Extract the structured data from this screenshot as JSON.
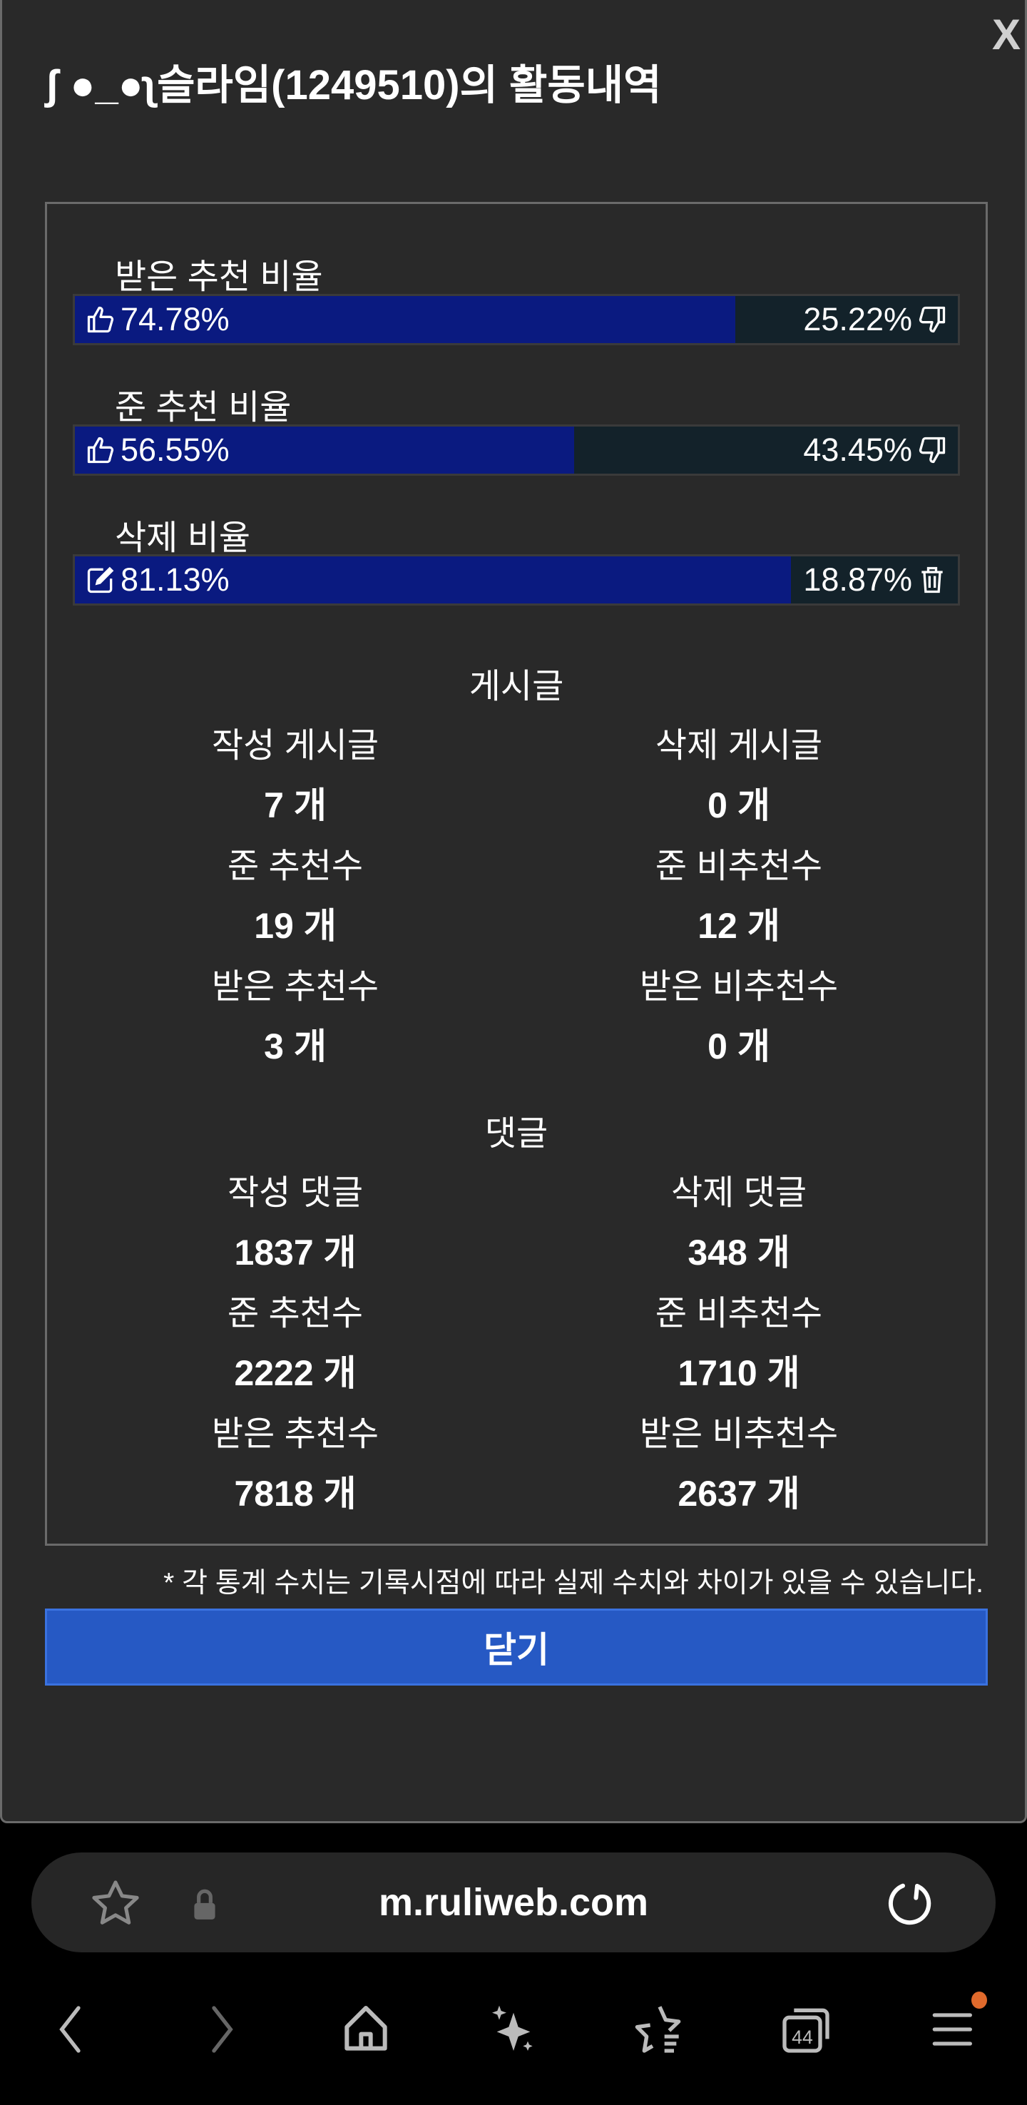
{
  "modal": {
    "title": "ʃ ●_●ʅ슬라임(1249510)의 활동내역",
    "close_label": "X"
  },
  "ratios": [
    {
      "label": "받은 추천 비율",
      "left_value": "74.78%",
      "right_value": "25.22%",
      "fill_percent": 74.78,
      "left_icon": "thumbs-up-icon",
      "right_icon": "thumbs-down-icon"
    },
    {
      "label": "준 추천 비율",
      "left_value": "56.55%",
      "right_value": "43.45%",
      "fill_percent": 56.55,
      "left_icon": "thumbs-up-icon",
      "right_icon": "thumbs-down-icon"
    },
    {
      "label": "삭제 비율",
      "left_value": "81.13%",
      "right_value": "18.87%",
      "fill_percent": 81.13,
      "left_icon": "edit-icon",
      "right_icon": "trash-icon"
    }
  ],
  "posts": {
    "heading": "게시글",
    "stats": [
      {
        "label": "작성 게시글",
        "value": "7 개"
      },
      {
        "label": "삭제 게시글",
        "value": "0 개"
      },
      {
        "label": "준 추천수",
        "value": "19 개"
      },
      {
        "label": "준 비추천수",
        "value": "12 개"
      },
      {
        "label": "받은 추천수",
        "value": "3 개"
      },
      {
        "label": "받은 비추천수",
        "value": "0 개"
      }
    ]
  },
  "comments": {
    "heading": "댓글",
    "stats": [
      {
        "label": "작성 댓글",
        "value": "1837 개"
      },
      {
        "label": "삭제 댓글",
        "value": "348 개"
      },
      {
        "label": "준 추천수",
        "value": "2222 개"
      },
      {
        "label": "준 비추천수",
        "value": "1710 개"
      },
      {
        "label": "받은 추천수",
        "value": "7818 개"
      },
      {
        "label": "받은 비추천수",
        "value": "2637 개"
      }
    ]
  },
  "footnote": "* 각 통계 수치는 기록시점에 따라 실제 수치와 차이가 있을 수 있습니다.",
  "close_button": "닫기",
  "browser": {
    "url": "m.ruliweb.com",
    "tabs_count": "44",
    "colors": {
      "notification_dot": "#e06a2c",
      "accent": "#2659c4",
      "bar_fill": "#0a1a80"
    }
  }
}
